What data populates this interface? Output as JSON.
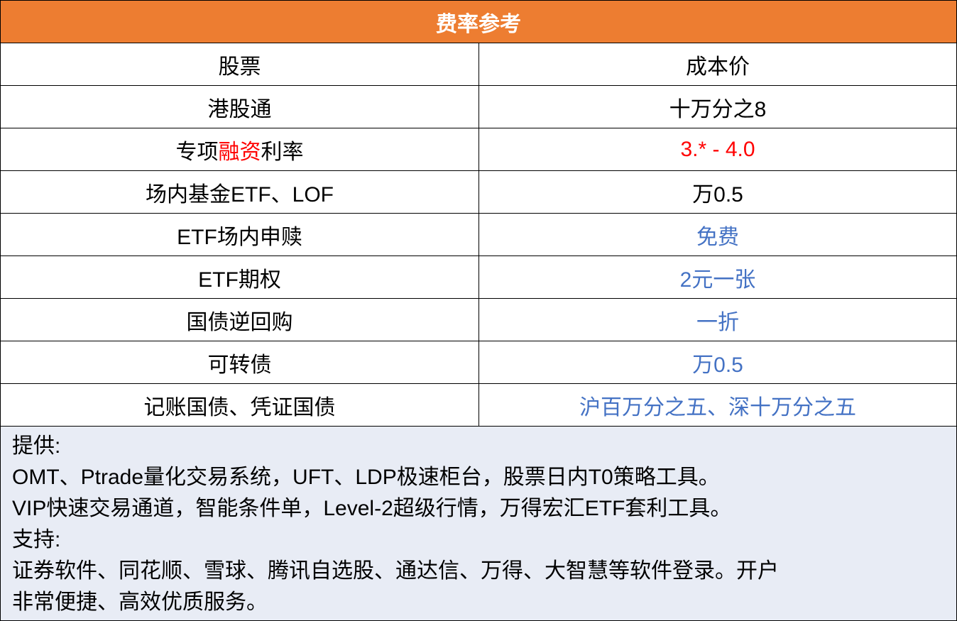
{
  "title": "费率参考",
  "table": {
    "header": [
      "股票",
      "成本价"
    ],
    "rows": [
      [
        "港股通",
        "十万分之8"
      ],
      [
        [
          "专项",
          "融资",
          "利率"
        ],
        "3.* - 4.0"
      ],
      [
        "场内基金ETF、LOF",
        "万0.5"
      ],
      [
        "ETF场内申赎",
        "免费"
      ],
      [
        "ETF期权",
        "2元一张"
      ],
      [
        "国债逆回购",
        "一折"
      ],
      [
        "可转债",
        "万0.5"
      ],
      [
        "记账国债、凭证国债",
        "沪百万分之五、深十万分之五"
      ]
    ]
  },
  "footer": {
    "lines": [
      "提供:",
      "OMT、Ptrade量化交易系统，UFT、LDP极速柜台，股票日内T0策略工具。",
      "VIP快速交易通道，智能条件单，Level-2超级行情，万得宏汇ETF套利工具。",
      "支持:",
      "证券软件、同花顺、雪球、腾讯自选股、通达信、万得、大智慧等软件登录。开户",
      "非常便捷、高效优质服务。"
    ]
  }
}
